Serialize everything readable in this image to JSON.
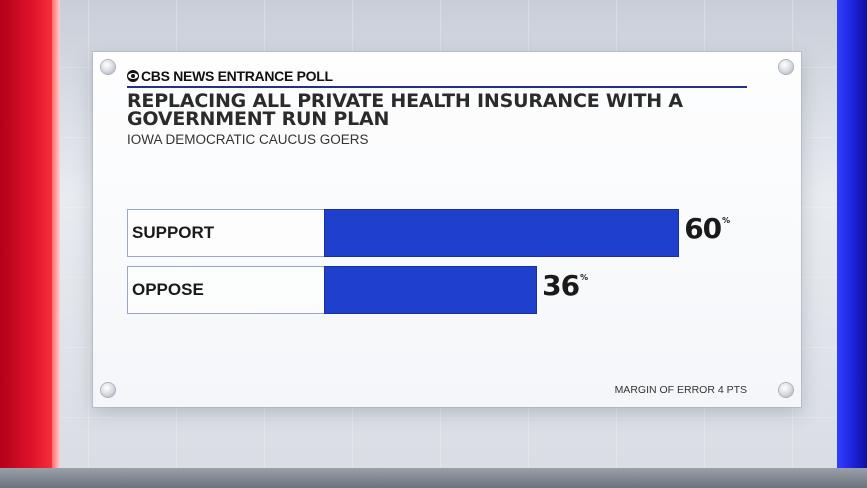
{
  "brand": {
    "name": "CBS NEWS ENTRANCE POLL",
    "logo_icon": "cbs-eye-icon"
  },
  "chart_data": {
    "type": "bar",
    "orientation": "horizontal",
    "title": "REPLACING ALL PRIVATE HEALTH INSURANCE WITH A GOVERNMENT RUN PLAN",
    "subtitle": "IOWA DEMOCRATIC CAUCUS GOERS",
    "categories": [
      "SUPPORT",
      "OPPOSE"
    ],
    "values": [
      60,
      36
    ],
    "value_labels": [
      "60",
      "36"
    ],
    "unit": "%",
    "xlim": [
      0,
      100
    ],
    "bar_color": "#1f40cc",
    "grid": false,
    "legend": "none"
  },
  "footnote": "MARGIN OF ERROR 4 PTS",
  "colors": {
    "accent_red": "#e0142a",
    "accent_blue": "#1a1fd6",
    "rule": "#23308f"
  }
}
